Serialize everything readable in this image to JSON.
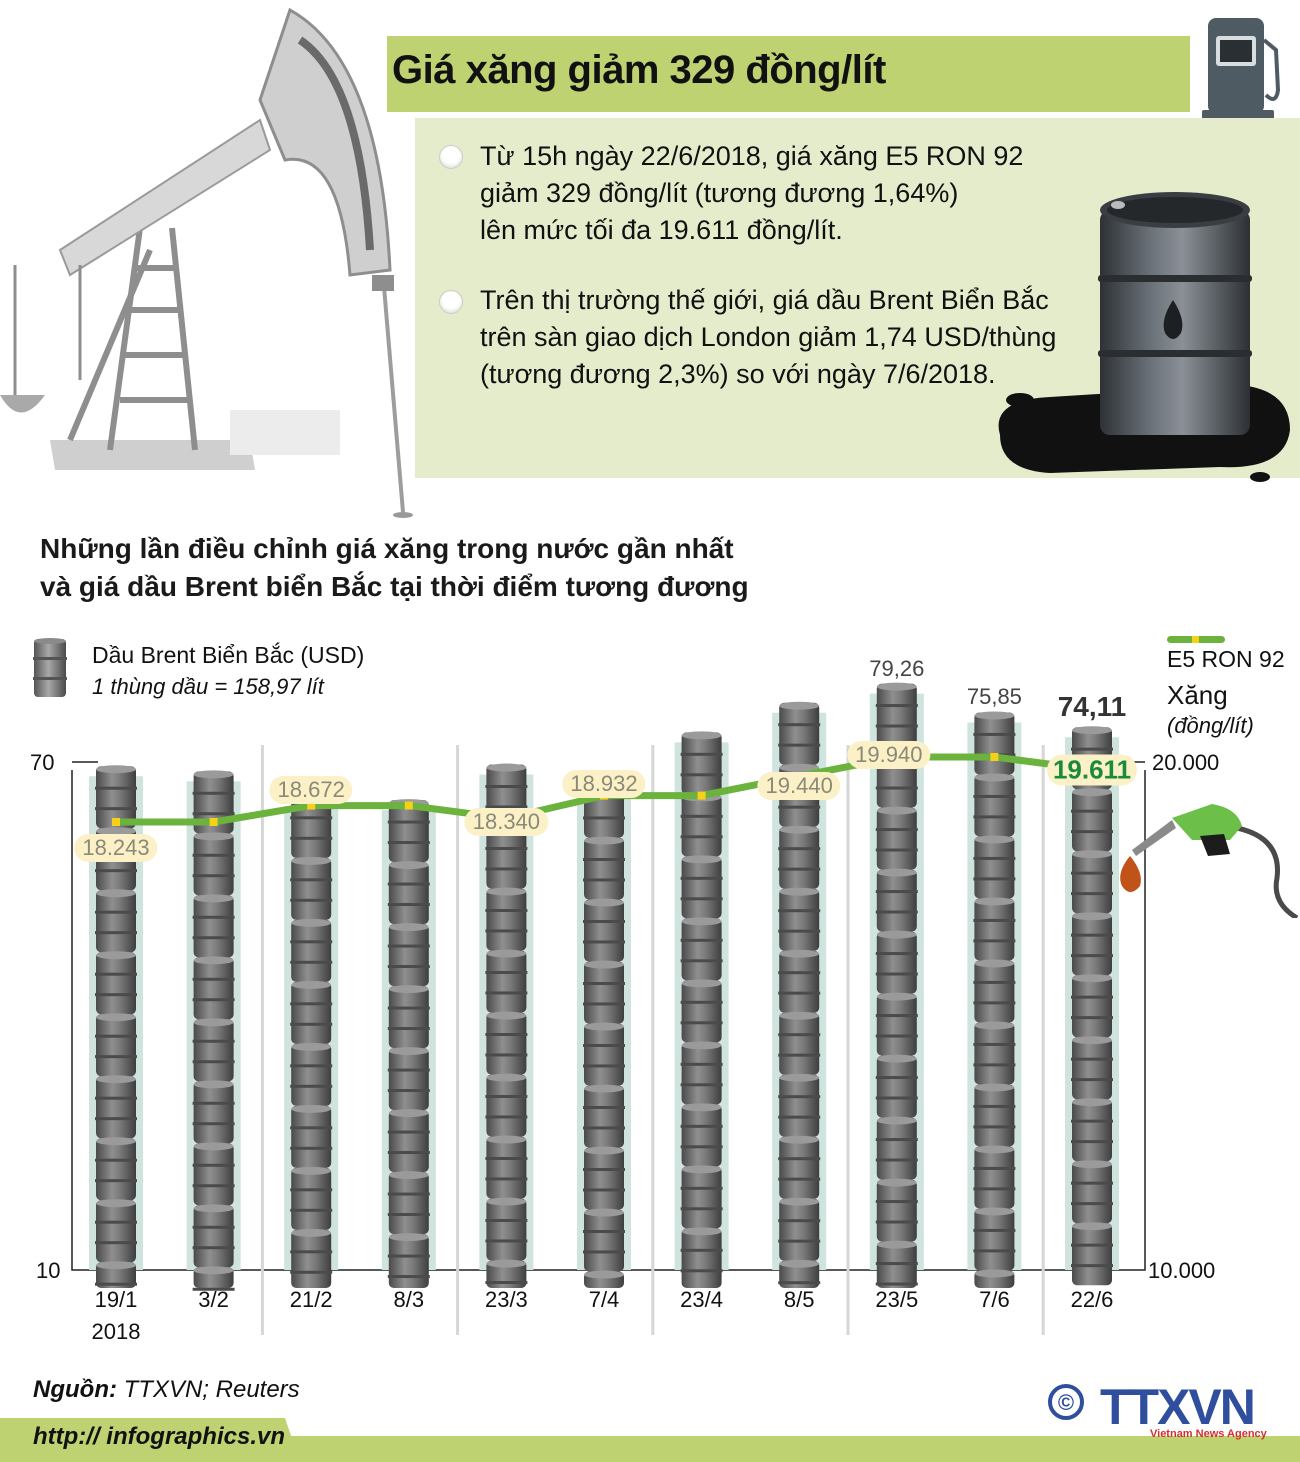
{
  "header": {
    "title": "Giá xăng giảm 329 đồng/lít",
    "bullets": [
      {
        "lines": [
          "Từ 15h ngày 22/6/2018, giá xăng E5 RON 92",
          "giảm 329 đồng/lít (tương đương 1,64%)",
          "lên mức tối đa 19.611 đồng/lít."
        ]
      },
      {
        "lines": [
          "Trên thị trường thế giới, giá dầu Brent Biển Bắc",
          "trên sàn giao dịch London giảm 1,74 USD/thùng",
          "(tương đương 2,3%) so với ngày 7/6/2018."
        ]
      }
    ],
    "icons": [
      "pumpjack-icon",
      "gas-pump-icon",
      "oil-barrel-spill-icon"
    ]
  },
  "chart": {
    "title_line1": "Những lần điều chỉnh giá xăng trong nước gần nhất",
    "title_line2": "và giá dầu Brent biển Bắc tại thời điểm tương đương",
    "legend": {
      "oil_label": "Dầu Brent Biển Bắc (USD)",
      "oil_note": "1 thùng dầu = 158,97 lít",
      "fuel_label_line1": "E5 RON 92",
      "fuel_label_line2": "Xăng",
      "fuel_unit": "(đồng/lít)"
    },
    "left_axis": {
      "top": "70",
      "bottom": "10"
    },
    "right_axis": {
      "top": "20.000",
      "bottom": "10.000"
    },
    "x_year": "2018"
  },
  "chart_data": {
    "type": "bar",
    "title": "Những lần điều chỉnh giá xăng trong nước gần nhất và giá dầu Brent biển Bắc tại thời điểm tương đương",
    "categories": [
      "19/1",
      "3/2",
      "21/2",
      "8/3",
      "23/3",
      "7/4",
      "23/4",
      "8/5",
      "23/5",
      "7/6",
      "22/6"
    ],
    "x_sublabel": {
      "19/1": "2018"
    },
    "series": [
      {
        "name": "Dầu Brent Biển Bắc (USD)",
        "type": "bar",
        "axis": "left",
        "values": [
          69.5,
          68.9,
          66.0,
          65.5,
          69.7,
          68.4,
          73.5,
          77.0,
          79.26,
          75.85,
          74.11
        ],
        "labels": [
          "",
          "",
          "",
          "",
          "",
          "",
          "",
          "",
          "79,26",
          "75,85",
          "74,11"
        ]
      },
      {
        "name": "E5 RON 92 Xăng (đồng/lít)",
        "type": "line",
        "axis": "right",
        "values": [
          18243,
          18243,
          18672,
          18672,
          18340,
          18932,
          18932,
          19440,
          19940,
          19940,
          19611
        ],
        "labels": [
          "18.243",
          "",
          "18.672",
          "",
          "18.340",
          "18.932",
          "",
          "19.440",
          "19.940",
          "",
          "19.611"
        ]
      }
    ],
    "ylabel_left": "USD",
    "ylabel_right": "đồng/lít",
    "ylim_left": [
      10,
      70
    ],
    "ylim_right": [
      10000,
      20000
    ],
    "legend_position": "top",
    "grid": false,
    "colors": {
      "bar_bg": "#cfe3df",
      "barrel": "#6e6e6e",
      "line": "#6bb33c",
      "marker": "#f7d117",
      "label_bg": "#fbf0c6",
      "highlight": "#1a8a3c"
    }
  },
  "footer": {
    "source_label": "Nguồn:",
    "source_value": " TTXVN; Reuters",
    "url": "http:// infographics.vn",
    "logo_text": "TTXVN",
    "logo_sub": "Vietnam News Agency",
    "copyright": "©"
  }
}
